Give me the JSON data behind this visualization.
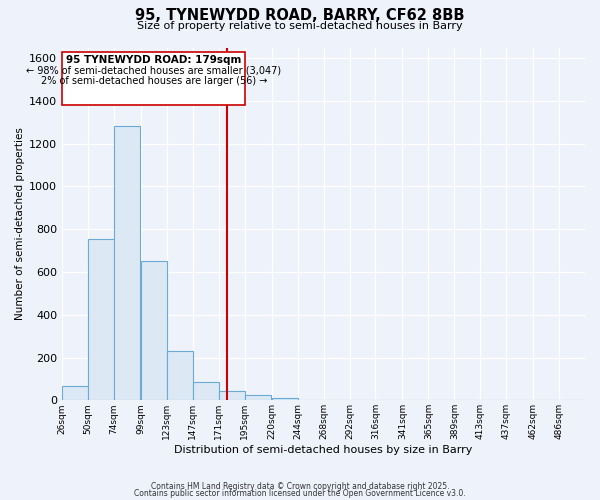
{
  "title": "95, TYNEWYDD ROAD, BARRY, CF62 8BB",
  "subtitle": "Size of property relative to semi-detached houses in Barry",
  "xlabel": "Distribution of semi-detached houses by size in Barry",
  "ylabel": "Number of semi-detached properties",
  "annotation_title": "95 TYNEWYDD ROAD: 179sqm",
  "annotation_line1": "← 98% of semi-detached houses are smaller (3,047)",
  "annotation_line2": "2% of semi-detached houses are larger (56) →",
  "property_size": 179,
  "bin_edges": [
    26,
    50,
    74,
    99,
    123,
    147,
    171,
    195,
    220,
    244,
    268,
    292,
    316,
    341,
    365,
    389,
    413,
    437,
    462,
    486,
    510
  ],
  "bin_counts": [
    65,
    755,
    1285,
    650,
    230,
    85,
    45,
    25,
    10,
    0,
    0,
    0,
    0,
    0,
    0,
    0,
    0,
    0,
    0,
    0
  ],
  "bar_facecolor": "#dce9f5",
  "bar_edgecolor": "#6aaad4",
  "vline_color": "#cc0000",
  "background_color": "#eef2fb",
  "grid_color": "#ffffff",
  "ylim": [
    0,
    1650
  ],
  "yticks": [
    0,
    200,
    400,
    600,
    800,
    1000,
    1200,
    1400,
    1600
  ],
  "footer1": "Contains HM Land Registry data © Crown copyright and database right 2025.",
  "footer2": "Contains public sector information licensed under the Open Government Licence v3.0."
}
